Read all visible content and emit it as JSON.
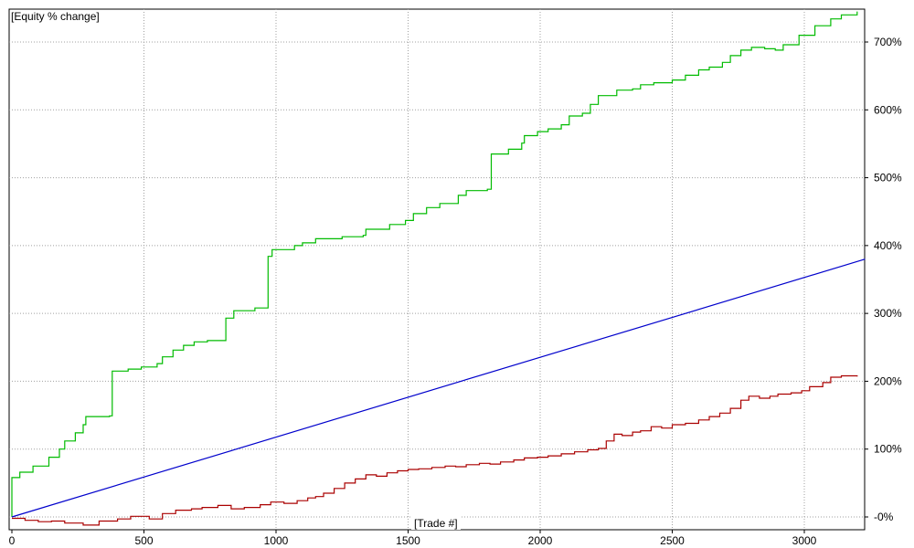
{
  "chart_data": {
    "type": "line",
    "title": "[Equity % change]",
    "xlabel": "[Trade #]",
    "ylabel": "",
    "xlim": [
      0,
      3230
    ],
    "ylim": [
      -5,
      750
    ],
    "x_ticks": [
      0,
      500,
      1000,
      1500,
      2000,
      2500,
      3000
    ],
    "x_tick_labels": [
      "0",
      "500",
      "1000",
      "1500",
      "2000",
      "2500",
      "3000"
    ],
    "y_ticks": [
      0,
      100,
      200,
      300,
      400,
      500,
      600,
      700
    ],
    "y_tick_labels": [
      "-0%",
      "100%",
      "200%",
      "300%",
      "400%",
      "500%",
      "600%",
      "700%"
    ],
    "grid": true,
    "series": [
      {
        "color": "#00bb00",
        "step": true,
        "points": [
          [
            0,
            0
          ],
          [
            0,
            58
          ],
          [
            30,
            66
          ],
          [
            80,
            75
          ],
          [
            140,
            88
          ],
          [
            180,
            100
          ],
          [
            200,
            112
          ],
          [
            240,
            124
          ],
          [
            270,
            136
          ],
          [
            280,
            148
          ],
          [
            370,
            149
          ],
          [
            380,
            215
          ],
          [
            440,
            218
          ],
          [
            490,
            221
          ],
          [
            550,
            226
          ],
          [
            570,
            236
          ],
          [
            610,
            246
          ],
          [
            650,
            253
          ],
          [
            690,
            258
          ],
          [
            740,
            260
          ],
          [
            810,
            265
          ],
          [
            810,
            293
          ],
          [
            840,
            304
          ],
          [
            920,
            308
          ],
          [
            970,
            319
          ],
          [
            970,
            384
          ],
          [
            985,
            394
          ],
          [
            1070,
            400
          ],
          [
            1100,
            404
          ],
          [
            1150,
            410
          ],
          [
            1250,
            413
          ],
          [
            1330,
            415
          ],
          [
            1340,
            424
          ],
          [
            1430,
            431
          ],
          [
            1490,
            437
          ],
          [
            1520,
            447
          ],
          [
            1570,
            456
          ],
          [
            1620,
            462
          ],
          [
            1690,
            474
          ],
          [
            1720,
            481
          ],
          [
            1800,
            483
          ],
          [
            1815,
            535
          ],
          [
            1880,
            542
          ],
          [
            1930,
            551
          ],
          [
            1940,
            562
          ],
          [
            1990,
            568
          ],
          [
            2030,
            572
          ],
          [
            2080,
            578
          ],
          [
            2110,
            591
          ],
          [
            2160,
            595
          ],
          [
            2190,
            608
          ],
          [
            2220,
            621
          ],
          [
            2290,
            629
          ],
          [
            2350,
            631
          ],
          [
            2380,
            637
          ],
          [
            2430,
            640
          ],
          [
            2500,
            644
          ],
          [
            2550,
            651
          ],
          [
            2600,
            659
          ],
          [
            2640,
            663
          ],
          [
            2690,
            670
          ],
          [
            2720,
            680
          ],
          [
            2760,
            688
          ],
          [
            2800,
            692
          ],
          [
            2850,
            690
          ],
          [
            2890,
            688
          ],
          [
            2920,
            696
          ],
          [
            2980,
            710
          ],
          [
            3040,
            724
          ],
          [
            3100,
            734
          ],
          [
            3140,
            740
          ],
          [
            3200,
            745
          ]
        ]
      },
      {
        "color": "#0000cc",
        "step": false,
        "points": [
          [
            0,
            0
          ],
          [
            3230,
            380
          ]
        ]
      },
      {
        "color": "#aa0000",
        "step": true,
        "points": [
          [
            0,
            -2
          ],
          [
            50,
            -5
          ],
          [
            100,
            -7
          ],
          [
            150,
            -6
          ],
          [
            200,
            -9
          ],
          [
            270,
            -12
          ],
          [
            330,
            -6
          ],
          [
            400,
            -3
          ],
          [
            450,
            1
          ],
          [
            520,
            -3
          ],
          [
            570,
            5
          ],
          [
            620,
            10
          ],
          [
            680,
            12
          ],
          [
            720,
            14
          ],
          [
            780,
            17
          ],
          [
            830,
            12
          ],
          [
            880,
            14
          ],
          [
            940,
            18
          ],
          [
            980,
            22
          ],
          [
            1030,
            20
          ],
          [
            1080,
            24
          ],
          [
            1120,
            28
          ],
          [
            1150,
            30
          ],
          [
            1180,
            35
          ],
          [
            1220,
            42
          ],
          [
            1260,
            50
          ],
          [
            1300,
            56
          ],
          [
            1340,
            62
          ],
          [
            1380,
            60
          ],
          [
            1420,
            65
          ],
          [
            1460,
            68
          ],
          [
            1500,
            70
          ],
          [
            1540,
            71
          ],
          [
            1590,
            73
          ],
          [
            1640,
            75
          ],
          [
            1680,
            74
          ],
          [
            1720,
            77
          ],
          [
            1770,
            79
          ],
          [
            1810,
            78
          ],
          [
            1850,
            81
          ],
          [
            1900,
            84
          ],
          [
            1940,
            87
          ],
          [
            1990,
            88
          ],
          [
            2030,
            90
          ],
          [
            2080,
            93
          ],
          [
            2130,
            96
          ],
          [
            2180,
            99
          ],
          [
            2220,
            101
          ],
          [
            2250,
            112
          ],
          [
            2280,
            122
          ],
          [
            2310,
            120
          ],
          [
            2350,
            125
          ],
          [
            2380,
            127
          ],
          [
            2420,
            133
          ],
          [
            2460,
            131
          ],
          [
            2500,
            136
          ],
          [
            2550,
            138
          ],
          [
            2600,
            143
          ],
          [
            2640,
            148
          ],
          [
            2680,
            153
          ],
          [
            2720,
            160
          ],
          [
            2760,
            172
          ],
          [
            2790,
            178
          ],
          [
            2830,
            175
          ],
          [
            2870,
            178
          ],
          [
            2900,
            181
          ],
          [
            2950,
            183
          ],
          [
            2990,
            186
          ],
          [
            3020,
            192
          ],
          [
            3070,
            198
          ],
          [
            3100,
            206
          ],
          [
            3140,
            208
          ],
          [
            3200,
            207
          ]
        ]
      }
    ]
  }
}
